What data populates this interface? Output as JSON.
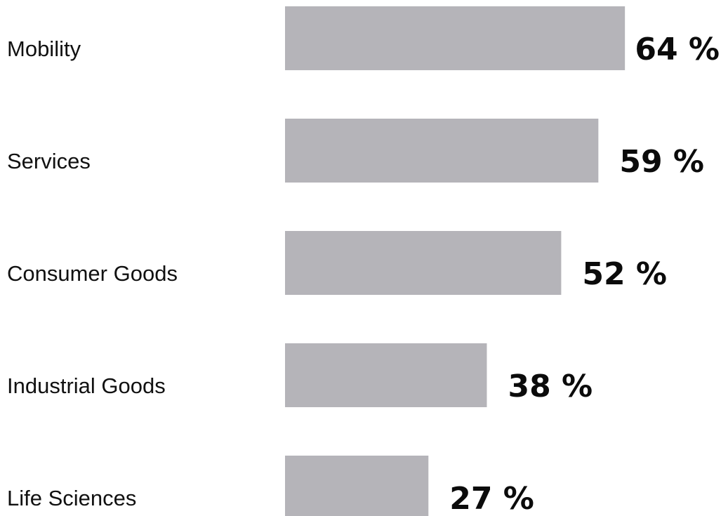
{
  "chart_data": {
    "type": "bar",
    "orientation": "horizontal",
    "categories": [
      "Mobility",
      "Services",
      "Consumer Goods",
      "Industrial Goods",
      "Life Sciences"
    ],
    "values": [
      64,
      59,
      52,
      38,
      27
    ],
    "value_labels": [
      "64 %",
      "59 %",
      "52 %",
      "38 %",
      "27 %"
    ],
    "value_unit": "%",
    "bar_color": "#b5b4b9",
    "text_color": "#111111",
    "title": "",
    "xlabel": "",
    "ylabel": "",
    "grid": false,
    "axes_visible": false
  }
}
